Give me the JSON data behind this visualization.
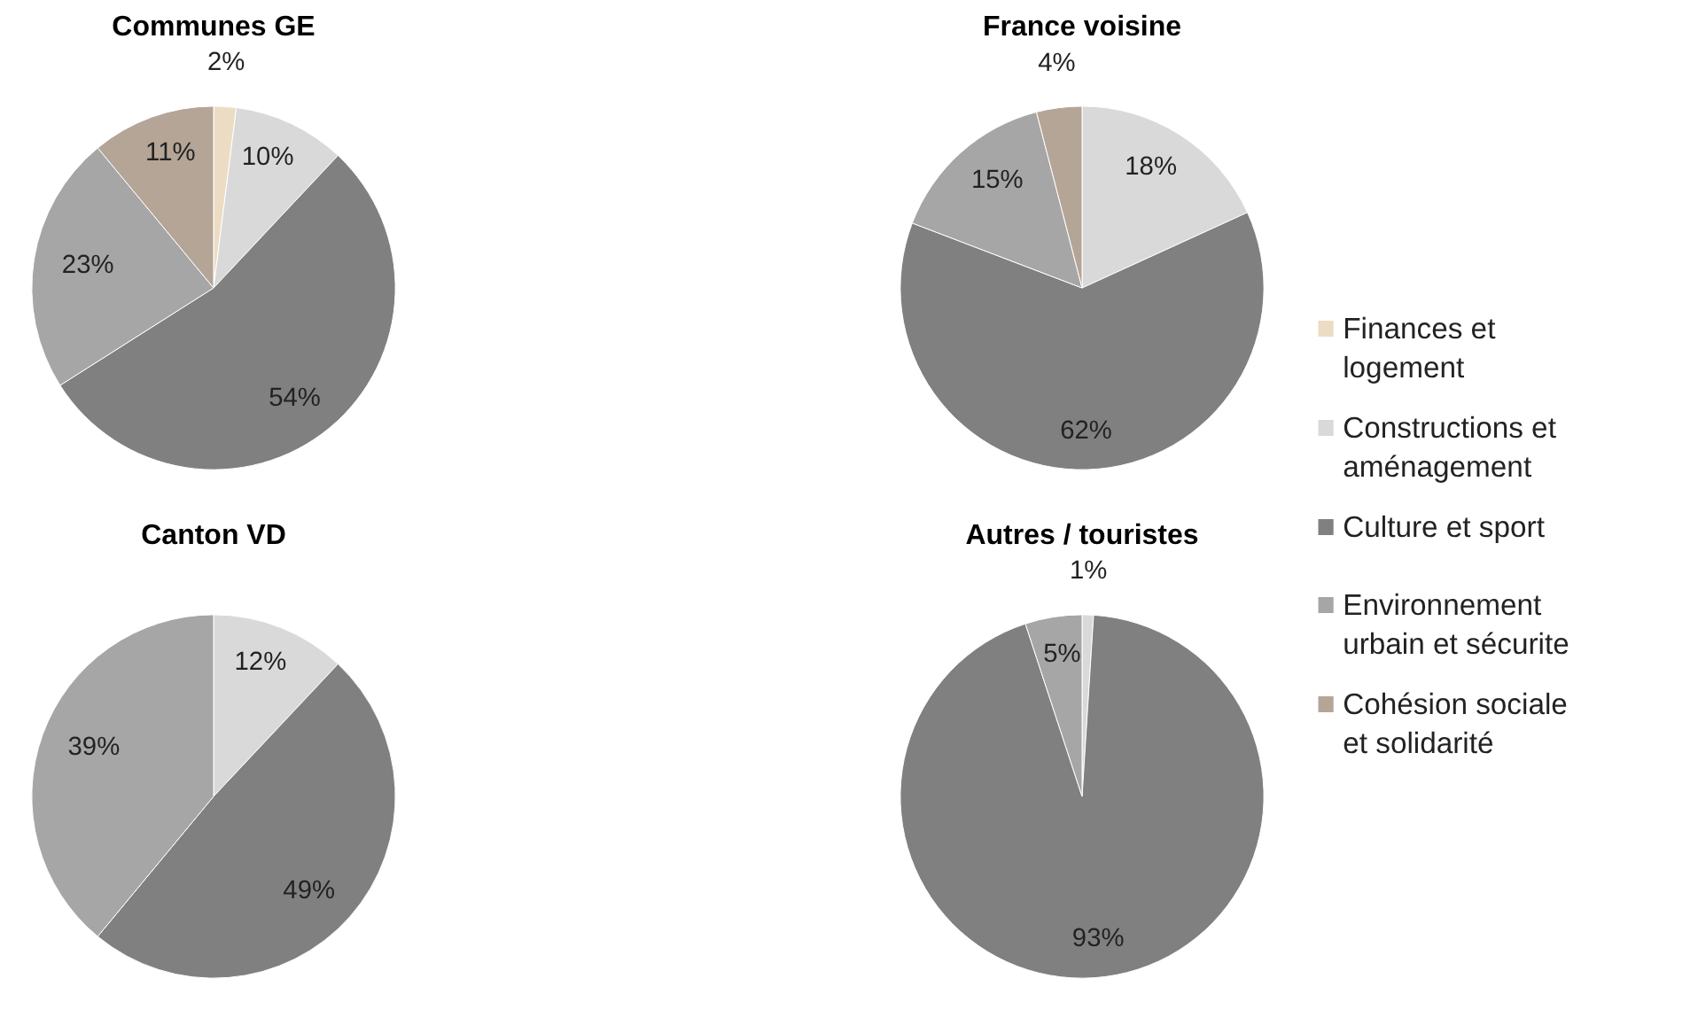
{
  "chart_data": [
    {
      "type": "pie",
      "title": "Communes GE",
      "categories": [
        "Finances et logement",
        "Constructions et aménagement",
        "Culture et sport",
        "Environnement urbain et sécurite",
        "Cohésion sociale et solidarité"
      ],
      "values": [
        2,
        10,
        54,
        23,
        11
      ],
      "value_labels": [
        "2%",
        "10%",
        "54%",
        "23%",
        "11%"
      ],
      "colors": [
        "#eddcc4",
        "#d9d9d9",
        "#808080",
        "#a6a6a6",
        "#b5a597"
      ],
      "legend": "right"
    },
    {
      "type": "pie",
      "title": "France voisine",
      "categories": [
        null,
        null,
        null,
        null
      ],
      "values": [
        18,
        62,
        15,
        4
      ],
      "value_labels": [
        "18%",
        "62%",
        "15%",
        "4%"
      ],
      "colors": [
        "#d9d9d9",
        "#808080",
        "#a6a6a6",
        "#b5a597"
      ]
    },
    {
      "type": "pie",
      "title": "Canton VD",
      "categories": [
        null,
        null,
        null
      ],
      "values": [
        12,
        49,
        39
      ],
      "value_labels": [
        "12%",
        "49%",
        "39%"
      ],
      "colors": [
        "#d9d9d9",
        "#808080",
        "#a6a6a6"
      ]
    },
    {
      "type": "pie",
      "title": "Autres / touristes",
      "categories": [
        null,
        null,
        null
      ],
      "values": [
        1,
        93,
        5
      ],
      "value_labels": [
        "1%",
        "93%",
        "5%"
      ],
      "colors": [
        "#d9d9d9",
        "#808080",
        "#a6a6a6"
      ]
    }
  ]
}
